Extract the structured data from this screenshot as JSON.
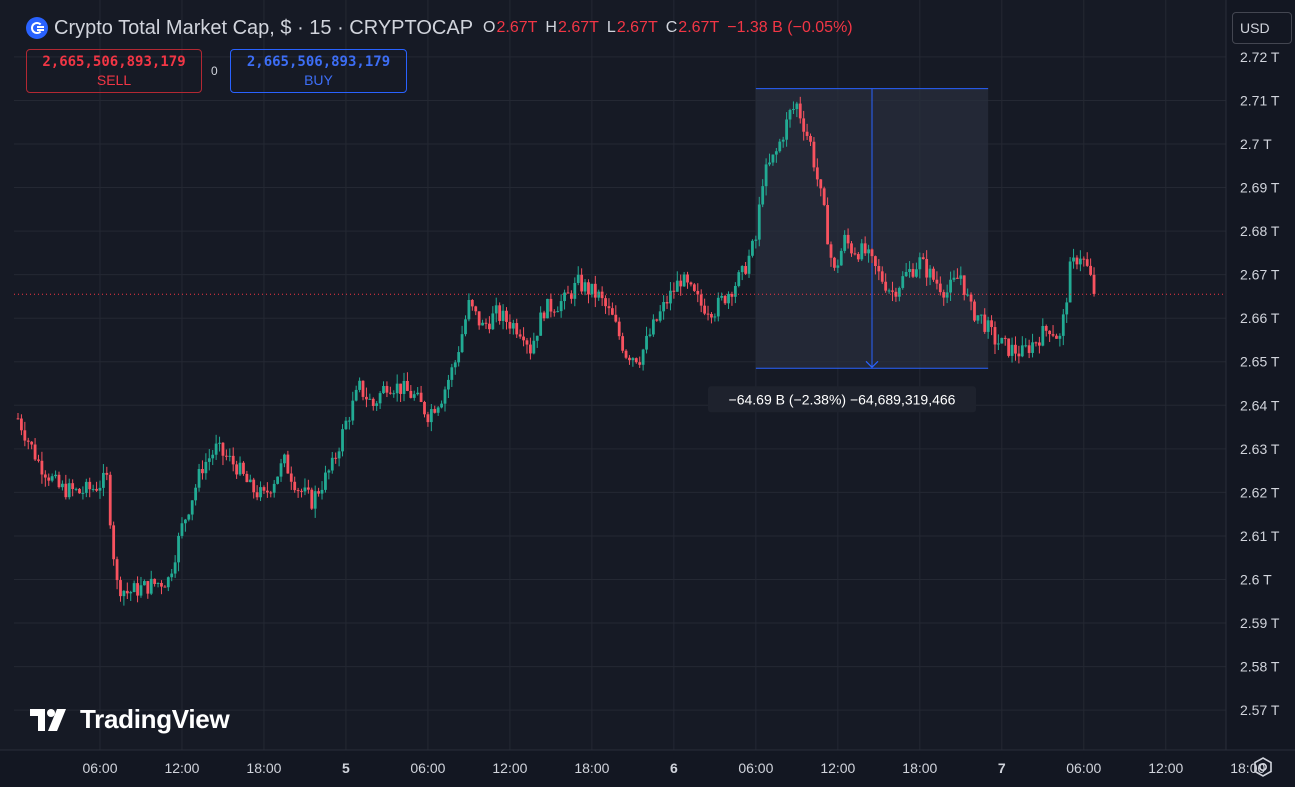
{
  "header": {
    "title": "Crypto Total Market Cap, $ · 15 · CRYPTOCAP",
    "ohlc": [
      {
        "key": "O",
        "value": "2.67T"
      },
      {
        "key": "H",
        "value": "2.67T"
      },
      {
        "key": "L",
        "value": "2.67T"
      },
      {
        "key": "C",
        "value": "2.67T"
      }
    ],
    "change": "−1.38 B (−0.05%)"
  },
  "trade": {
    "sell_price": "2,665,506,893,179",
    "sell_label": "SELL",
    "spread": "0",
    "buy_price": "2,665,506,893,179",
    "buy_label": "BUY"
  },
  "currency": "USD",
  "logo_text": "TradingView",
  "measure": {
    "label": "−64.69 B (−2.38%)  −64,689,319,466"
  },
  "colors": {
    "background": "#161a25",
    "up": "#22ab94",
    "down": "#f7525f",
    "accent": "#2962ff",
    "last_price": "#f23645"
  },
  "chart_data": {
    "type": "candlestick",
    "title": "Crypto Total Market Cap",
    "interval": "15",
    "ylim": [
      2.567,
      2.722
    ],
    "y_ticks": [
      {
        "value": 2.57,
        "label": "2.57 T"
      },
      {
        "value": 2.58,
        "label": "2.58 T"
      },
      {
        "value": 2.59,
        "label": "2.59 T"
      },
      {
        "value": 2.6,
        "label": "2.6 T"
      },
      {
        "value": 2.61,
        "label": "2.61 T"
      },
      {
        "value": 2.62,
        "label": "2.62 T"
      },
      {
        "value": 2.63,
        "label": "2.63 T"
      },
      {
        "value": 2.64,
        "label": "2.64 T"
      },
      {
        "value": 2.65,
        "label": "2.65 T"
      },
      {
        "value": 2.66,
        "label": "2.66 T"
      },
      {
        "value": 2.67,
        "label": "2.67 T"
      },
      {
        "value": 2.68,
        "label": "2.68 T"
      },
      {
        "value": 2.69,
        "label": "2.69 T"
      },
      {
        "value": 2.7,
        "label": "2.7 T"
      },
      {
        "value": 2.71,
        "label": "2.71 T"
      },
      {
        "value": 2.72,
        "label": "2.72 T"
      }
    ],
    "x_ticks": [
      {
        "hour": 6,
        "label": "06:00"
      },
      {
        "hour": 12,
        "label": "12:00"
      },
      {
        "hour": 18,
        "label": "18:00"
      },
      {
        "hour": 24,
        "label": "5",
        "bold": true
      },
      {
        "hour": 30,
        "label": "06:00"
      },
      {
        "hour": 36,
        "label": "12:00"
      },
      {
        "hour": 42,
        "label": "18:00"
      },
      {
        "hour": 48,
        "label": "6",
        "bold": true
      },
      {
        "hour": 54,
        "label": "06:00"
      },
      {
        "hour": 60,
        "label": "12:00"
      },
      {
        "hour": 66,
        "label": "18:00"
      },
      {
        "hour": 72,
        "label": "7",
        "bold": true
      },
      {
        "hour": 78,
        "label": "06:00"
      },
      {
        "hour": 84,
        "label": "12:00"
      },
      {
        "hour": 90,
        "label": "18:00"
      }
    ],
    "last_price": {
      "value": 2.6655,
      "label": "2.67 T"
    },
    "measure_range": {
      "start_hour": 54,
      "end_hour": 71,
      "high": 2.7127,
      "low": 2.6485
    },
    "close_anchors": [
      [
        0,
        2.637
      ],
      [
        1.5,
        2.627
      ],
      [
        3,
        2.621
      ],
      [
        4.5,
        2.62
      ],
      [
        5.5,
        2.621
      ],
      [
        6.5,
        2.623
      ],
      [
        7.2,
        2.599
      ],
      [
        8,
        2.597
      ],
      [
        9,
        2.598
      ],
      [
        10,
        2.599
      ],
      [
        11,
        2.6
      ],
      [
        12,
        2.612
      ],
      [
        13.5,
        2.626
      ],
      [
        14.5,
        2.63
      ],
      [
        16,
        2.626
      ],
      [
        17,
        2.621
      ],
      [
        18,
        2.619
      ],
      [
        19.5,
        2.627
      ],
      [
        20.5,
        2.621
      ],
      [
        21.5,
        2.618
      ],
      [
        23,
        2.626
      ],
      [
        24,
        2.636
      ],
      [
        25,
        2.644
      ],
      [
        26,
        2.64
      ],
      [
        27,
        2.645
      ],
      [
        28,
        2.644
      ],
      [
        29,
        2.642
      ],
      [
        30,
        2.638
      ],
      [
        31,
        2.642
      ],
      [
        32,
        2.65
      ],
      [
        33,
        2.663
      ],
      [
        34,
        2.658
      ],
      [
        35,
        2.661
      ],
      [
        36,
        2.659
      ],
      [
        37,
        2.657
      ],
      [
        37.5,
        2.653
      ],
      [
        38.5,
        2.662
      ],
      [
        40,
        2.664
      ],
      [
        41,
        2.668
      ],
      [
        42.5,
        2.665
      ],
      [
        43.5,
        2.66
      ],
      [
        44.5,
        2.652
      ],
      [
        45.5,
        2.651
      ],
      [
        46.5,
        2.658
      ],
      [
        47.5,
        2.664
      ],
      [
        48.5,
        2.669
      ],
      [
        50,
        2.663
      ],
      [
        51,
        2.662
      ],
      [
        52,
        2.666
      ],
      [
        53,
        2.67
      ],
      [
        54,
        2.678
      ],
      [
        54.5,
        2.692
      ],
      [
        55.5,
        2.698
      ],
      [
        56.5,
        2.707
      ],
      [
        57,
        2.709
      ],
      [
        58,
        2.7
      ],
      [
        59,
        2.684
      ],
      [
        59.7,
        2.67
      ],
      [
        60.5,
        2.678
      ],
      [
        61,
        2.676
      ],
      [
        62,
        2.675
      ],
      [
        63,
        2.67
      ],
      [
        64,
        2.666
      ],
      [
        65,
        2.67
      ],
      [
        66,
        2.673
      ],
      [
        67,
        2.669
      ],
      [
        68,
        2.666
      ],
      [
        69,
        2.67
      ],
      [
        69.7,
        2.662
      ],
      [
        70.5,
        2.66
      ],
      [
        71.5,
        2.655
      ],
      [
        72.5,
        2.653
      ],
      [
        73.5,
        2.652
      ],
      [
        74.5,
        2.655
      ],
      [
        75.5,
        2.658
      ],
      [
        76.3,
        2.655
      ],
      [
        77,
        2.671
      ],
      [
        77.7,
        2.675
      ],
      [
        78.3,
        2.671
      ],
      [
        78.8,
        2.6655
      ]
    ]
  }
}
